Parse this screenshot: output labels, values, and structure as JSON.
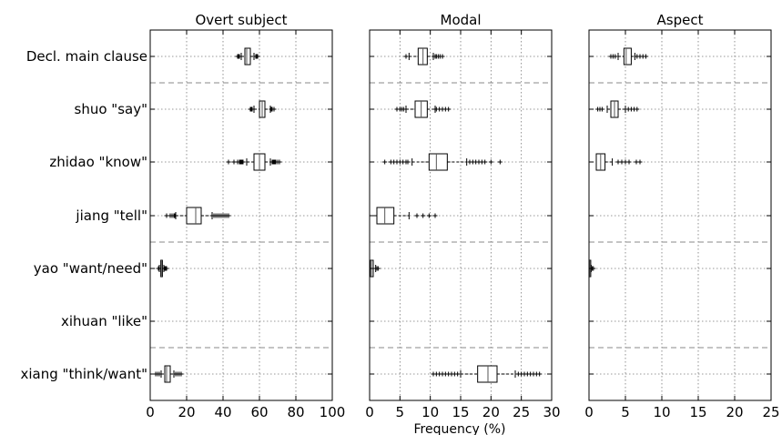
{
  "chart_data": {
    "type": "boxplot",
    "categories": [
      "Decl. main clause",
      "shuo \"say\"",
      "zhidao \"know\"",
      "jiang \"tell\"",
      "yao \"want/need\"",
      "xihuan \"like\"",
      "xiang \"think/want\""
    ],
    "xlabel": "Frequency (%)",
    "grid": true,
    "group_separators_after": [
      0,
      3,
      5
    ],
    "panels": [
      {
        "title": "Overt subject",
        "xlim": [
          0,
          100
        ],
        "xticks": [
          0,
          20,
          40,
          60,
          80,
          100
        ],
        "boxes": [
          {
            "category": "Decl. main clause",
            "whislo": 50,
            "q1": 52,
            "med": 53,
            "q3": 55,
            "whishi": 57,
            "fliers": [
              48,
              48.5,
              49,
              58,
              58.5,
              59
            ]
          },
          {
            "category": "shuo \"say\"",
            "whislo": 57,
            "q1": 60,
            "med": 61.5,
            "q3": 63,
            "whishi": 66,
            "fliers": [
              55,
              55.5,
              56,
              66.5,
              67,
              68
            ]
          },
          {
            "category": "zhidao \"know\"",
            "whislo": 53,
            "q1": 57,
            "med": 60,
            "q3": 63,
            "whishi": 66,
            "fliers": [
              43,
              46,
              48,
              49,
              49.5,
              50,
              50.5,
              51,
              67,
              67.5,
              68,
              68.5,
              69,
              70,
              71
            ]
          },
          {
            "category": "jiang \"tell\"",
            "whislo": 14,
            "q1": 20,
            "med": 25,
            "q3": 28,
            "whishi": 34,
            "fliers": [
              9,
              11,
              12,
              13,
              13.5,
              35,
              36,
              37,
              38,
              39,
              40,
              41,
              42,
              43
            ]
          },
          {
            "category": "yao \"want/need\"",
            "whislo": 5,
            "q1": 5.8,
            "med": 6.2,
            "q3": 6.7,
            "whishi": 7.5,
            "fliers": [
              4.5,
              8,
              8.5,
              9
            ]
          },
          {
            "category": "xiang \"think/want\"",
            "whislo": 6,
            "q1": 8,
            "med": 9,
            "q3": 11,
            "whishi": 13,
            "fliers": [
              3,
              4,
              5,
              14,
              15,
              16,
              17
            ]
          }
        ]
      },
      {
        "title": "Modal",
        "xlim": [
          0,
          30
        ],
        "xticks": [
          0,
          5,
          10,
          15,
          20,
          25,
          30
        ],
        "boxes": [
          {
            "category": "Decl. main clause",
            "whislo": 6.5,
            "q1": 8,
            "med": 8.8,
            "q3": 9.5,
            "whishi": 10.5,
            "fliers": [
              6,
              10.8,
              11,
              11.3,
              11.6,
              12
            ]
          },
          {
            "category": "shuo \"say\"",
            "whislo": 6,
            "q1": 7.5,
            "med": 8.5,
            "q3": 9.5,
            "whishi": 10.8,
            "fliers": [
              4.5,
              5,
              5.3,
              5.6,
              11,
              11.5,
              12,
              12.5,
              13
            ]
          },
          {
            "category": "zhidao \"know\"",
            "whislo": 7,
            "q1": 9.8,
            "med": 11,
            "q3": 12.8,
            "whishi": 16,
            "fliers": [
              2.5,
              3.5,
              4,
              4.5,
              5,
              5.5,
              6,
              6.3,
              16.5,
              17,
              17.5,
              18,
              18.5,
              19,
              20,
              21.5
            ]
          },
          {
            "category": "jiang \"tell\"",
            "whislo": 0,
            "q1": 1.2,
            "med": 2.5,
            "q3": 4,
            "whishi": 6.5,
            "fliers": [
              7.8,
              8.8,
              9.8,
              10.8
            ]
          },
          {
            "category": "yao \"want/need\"",
            "whislo": 0,
            "q1": 0.1,
            "med": 0.3,
            "q3": 0.6,
            "whishi": 1,
            "fliers": [
              1.2,
              1.4
            ]
          },
          {
            "category": "xiang \"think/want\"",
            "whislo": 15,
            "q1": 17.8,
            "med": 19.5,
            "q3": 21,
            "whishi": 24,
            "fliers": [
              10.5,
              11,
              11.5,
              12,
              12.5,
              13,
              13.5,
              14,
              14.5,
              24.5,
              25,
              25.5,
              26,
              26.5,
              27,
              27.5,
              28
            ]
          }
        ]
      },
      {
        "title": "Aspect",
        "xlim": [
          0,
          25
        ],
        "xticks": [
          0,
          5,
          10,
          15,
          20,
          25
        ],
        "boxes": [
          {
            "category": "Decl. main clause",
            "whislo": 4,
            "q1": 4.8,
            "med": 5.1,
            "q3": 5.8,
            "whishi": 6.3,
            "fliers": [
              3,
              3.3,
              3.6,
              6.6,
              7,
              7.4,
              7.8
            ]
          },
          {
            "category": "shuo \"say\"",
            "whislo": 2.5,
            "q1": 3,
            "med": 3.5,
            "q3": 4,
            "whishi": 5,
            "fliers": [
              1.2,
              1.5,
              1.8,
              5.4,
              5.8,
              6.2,
              6.6
            ]
          },
          {
            "category": "zhidao \"know\"",
            "whislo": 1,
            "q1": 1,
            "med": 1.6,
            "q3": 2.2,
            "whishi": 3.2,
            "fliers": [
              4,
              4.5,
              5,
              5.5,
              6.5,
              7
            ]
          },
          {
            "category": "yao \"want/need\"",
            "whislo": 0,
            "q1": 0.05,
            "med": 0.1,
            "q3": 0.2,
            "whishi": 0.3,
            "fliers": [
              0.45,
              0.6
            ]
          }
        ]
      }
    ]
  }
}
